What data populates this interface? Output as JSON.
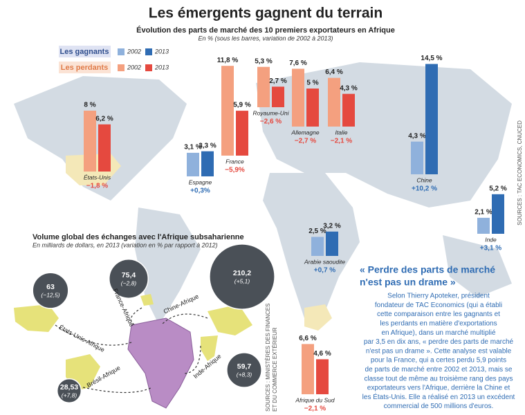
{
  "chart_data": [
    {
      "type": "bar",
      "title": "Les émergents gagnent du terrain",
      "subtitle": "Évolution des parts de marché des 10 premiers exportateurs en Afrique",
      "note": "En % (sous les barres, variation de 2002 à 2013)",
      "source": "SOURCES : TAC ECONOMICS, CNUCED",
      "legend_groups": [
        "Les gagnants",
        "Les perdants"
      ],
      "categories": [
        "États-Unis",
        "Espagne",
        "France",
        "Royaume-Uni",
        "Allemagne",
        "Italie",
        "Chine",
        "Inde",
        "Arabie saoudite",
        "Afrique du Sud"
      ],
      "series": [
        {
          "name": "2002",
          "color": "#8fb1dc",
          "values": [
            null,
            3.1,
            null,
            null,
            null,
            null,
            4.3,
            2.1,
            2.5,
            null
          ],
          "value_labels": [
            null,
            "3,1 %",
            null,
            null,
            null,
            null,
            "4,3 %",
            "2,1 %",
            "2,5 %",
            null
          ]
        },
        {
          "name": "2013",
          "color": "#2f6cb3",
          "values": [
            null,
            3.3,
            null,
            null,
            null,
            null,
            14.5,
            5.2,
            3.2,
            null
          ],
          "value_labels": [
            null,
            "3,3 %",
            null,
            null,
            null,
            null,
            "14,5 %",
            "5,2 %",
            "3,2 %",
            null
          ]
        },
        {
          "name": "2002",
          "color": "#f4a07f",
          "values": [
            8,
            null,
            11.8,
            5.3,
            7.6,
            6.4,
            null,
            null,
            null,
            6.6
          ],
          "value_labels": [
            "8 %",
            null,
            "11,8 %",
            "5,3 %",
            "7,6 %",
            "6,4 %",
            null,
            null,
            null,
            "6,6 %"
          ]
        },
        {
          "name": "2013",
          "color": "#e5493f",
          "values": [
            6.2,
            null,
            5.9,
            2.7,
            5,
            4.3,
            null,
            null,
            null,
            4.6
          ],
          "value_labels": [
            "6,2 %",
            null,
            "5,9 %",
            "2,7 %",
            "5 %",
            "4,3 %",
            null,
            null,
            null,
            "4,6 %"
          ]
        }
      ],
      "changes": {
        "values": [
          -1.8,
          0.3,
          -5.9,
          -2.6,
          -2.7,
          -2.1,
          10.2,
          3.1,
          0.7,
          -2.1
        ],
        "value_labels": [
          "−1,8 %",
          "+0,3%",
          "−5,9%",
          "−2,6 %",
          "−2,7 %",
          "−2,1 %",
          "+10,2 %",
          "+3,1 %",
          "+0,7 %",
          "−2,1 %"
        ]
      }
    },
    {
      "type": "bubble",
      "title": "Volume global des échanges avec l'Afrique subsaharienne",
      "subtitle": "En milliards de dollars, en 2013 (variation en % par rapport à 2012)",
      "source": [
        "SOURCES : MINISTÈRES DES FINANCES",
        "ET DU COMMERCE EXTÉRIEUR"
      ],
      "categories": [
        "États-Unis-Afrique",
        "France-Afrique",
        "Chine-Afrique",
        "Inde-Afrique",
        "Brésil-Afrique"
      ],
      "values": [
        63,
        75.4,
        210.2,
        59.7,
        28.53
      ],
      "value_labels": [
        "63",
        "75,4",
        "210,2",
        "59,7",
        "28,53"
      ],
      "changes": [
        -12.5,
        -2.8,
        5.1,
        8.3,
        7.8
      ],
      "change_labels": [
        "(−12,5)",
        "(−2,8)",
        "(+5,1)",
        "(+8,3)",
        "(+7,8)"
      ],
      "color": "#4a5057"
    }
  ],
  "article": {
    "title": [
      "« Perdre des parts de marché",
      "n'est pas un drame »"
    ],
    "body": [
      "Selon Thierry Apoteker, président",
      "fondateur de TAC Economics (qui a établi",
      "cette comparaison entre les gagnants et",
      "les perdants en matière d'exportations",
      "en Afrique), dans un marché multiplié",
      "par 3,5 en dix ans, « perdre des parts de marché",
      "n'est pas un drame ». Cette analyse est valable",
      "pour la France, qui a certes perdu 5,9 points",
      "de parts de marché entre 2002 et 2013, mais se",
      "classe tout de même au troisième rang des pays",
      "exportateurs vers l'Afrique, derrière la Chine et",
      "les États-Unis. Elle a réalisé en 2013 un excédent",
      "commercial de 500 millions d'euros."
    ]
  }
}
